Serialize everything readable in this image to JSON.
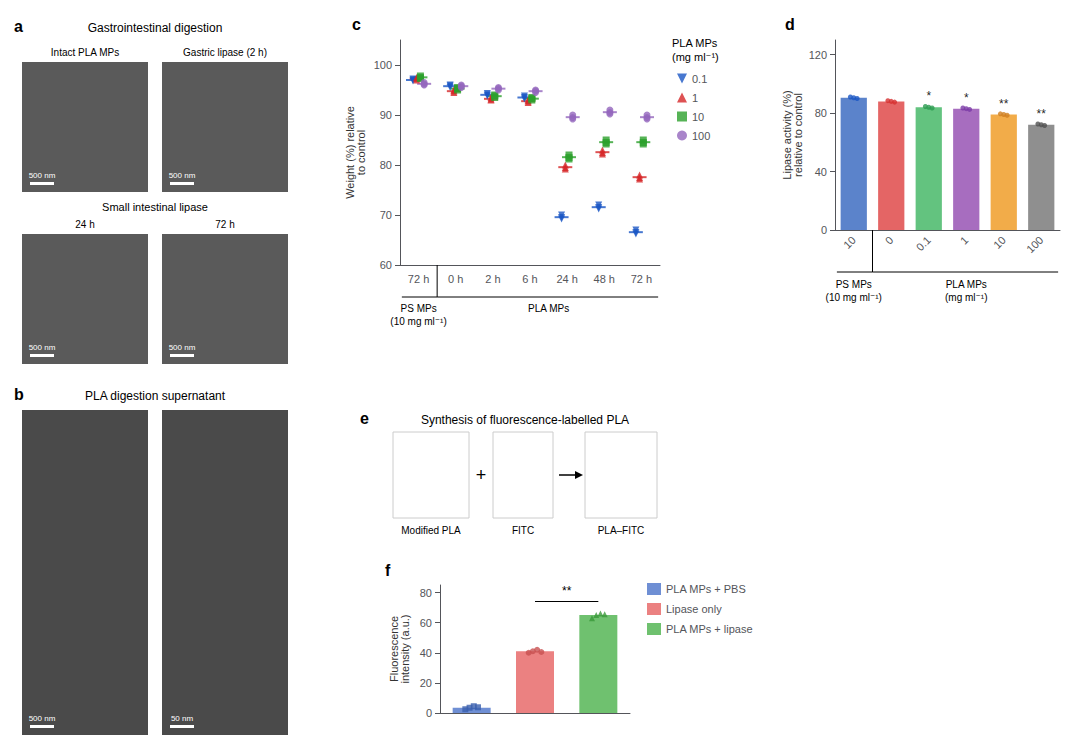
{
  "chart_data": [
    {
      "type": "diagram",
      "title": "Gastrointestinal digestion",
      "annotations": [
        "a",
        "Intact PLA MPs",
        "Gastric lipase (2 h)",
        "Small intestinal lipase",
        "24 h",
        "72 h",
        "500 nm",
        "500 nm",
        "500 nm",
        "500 nm"
      ]
    },
    {
      "type": "diagram",
      "title": "PLA digestion supernatant",
      "annotations": [
        "b",
        "500 nm",
        "50 nm"
      ]
    },
    {
      "type": "scatter",
      "annotations": [
        "c"
      ],
      "ylabel": "Weight (%) relative\nto control",
      "categories": [
        "72 h",
        "0 h",
        "2 h",
        "6 h",
        "24 h",
        "48 h",
        "72 h"
      ],
      "ylim": [
        60,
        105
      ],
      "yticks": [
        60,
        70,
        80,
        90,
        100
      ],
      "grid": false,
      "legend": "right",
      "legend_title": "PLA MPs\n(mg ml⁻¹)",
      "groups": [
        {
          "label": "PS MPs\n(10 mg ml⁻¹)",
          "count": 1
        },
        {
          "label": "PLA MPs",
          "count": 6
        }
      ],
      "series": [
        {
          "name": "0.1",
          "color": "#1a56c4",
          "marker": "triangle-down",
          "values": [
            [
              97.0,
              97.2,
              96.8
            ],
            [
              95.8,
              96.0,
              95.5
            ],
            [
              94.0,
              94.3,
              93.8
            ],
            [
              93.5,
              93.8,
              93.2
            ],
            [
              69.5,
              70.0,
              69.2
            ],
            [
              71.5,
              72.0,
              71.2
            ],
            [
              66.5,
              67.0,
              66.2
            ]
          ],
          "means": [
            97.0,
            95.7667,
            94.0333,
            93.5,
            69.5667,
            71.5667,
            66.5667
          ]
        },
        {
          "name": "1",
          "color": "#d62728",
          "marker": "triangle-up",
          "values": [
            [
              97.3,
              97.5,
              97.0
            ],
            [
              94.5,
              95.0,
              94.8
            ],
            [
              93.2,
              93.5,
              93.0
            ],
            [
              92.8,
              93.0,
              92.5
            ],
            [
              79.5,
              80.0,
              79.2
            ],
            [
              82.5,
              83.0,
              82.2
            ],
            [
              77.5,
              78.0,
              77.2
            ]
          ],
          "means": [
            97.2667,
            94.7667,
            93.2333,
            92.7667,
            79.5667,
            82.5667,
            77.5667
          ]
        },
        {
          "name": "10",
          "color": "#2ca02c",
          "marker": "square",
          "values": [
            [
              97.5,
              97.8,
              97.3
            ],
            [
              95.3,
              95.5,
              95.0
            ],
            [
              93.8,
              94.0,
              93.5
            ],
            [
              93.3,
              93.5,
              93.0
            ],
            [
              81.5,
              82.0,
              81.2
            ],
            [
              84.5,
              85.0,
              84.2
            ],
            [
              84.5,
              85.0,
              84.2
            ]
          ],
          "means": [
            97.5333,
            95.2667,
            93.7667,
            93.2667,
            81.5667,
            84.5667,
            84.5667
          ]
        },
        {
          "name": "100",
          "color": "#9467bd",
          "marker": "circle",
          "values": [
            [
              96.2,
              96.5,
              96.0
            ],
            [
              95.8,
              96.0,
              95.5
            ],
            [
              95.3,
              95.5,
              95.0
            ],
            [
              94.8,
              95.0,
              94.5
            ],
            [
              89.5,
              90.0,
              89.2
            ],
            [
              90.5,
              91.0,
              90.2
            ],
            [
              89.5,
              90.0,
              89.2
            ]
          ],
          "means": [
            96.2333,
            95.7667,
            95.2667,
            94.7667,
            89.5667,
            90.5667,
            89.5667
          ]
        }
      ]
    },
    {
      "type": "bar",
      "annotations": [
        "d"
      ],
      "ylabel": "Lipase activity (%)\nrelative to control",
      "categories": [
        "10",
        "0",
        "0.1",
        "1",
        "10",
        "100"
      ],
      "values": [
        90.5,
        88.0,
        84.0,
        83.0,
        79.0,
        72.0
      ],
      "colors": [
        "#4472c4",
        "#e05050",
        "#4dbb6d",
        "#9b59b6",
        "#f0a030",
        "#7f7f7f"
      ],
      "points": [
        [
          91.0,
          90.5,
          90.0
        ],
        [
          88.5,
          88.0,
          87.5
        ],
        [
          84.5,
          84.0,
          83.5
        ],
        [
          83.5,
          83.0,
          82.5
        ],
        [
          79.5,
          79.0,
          78.5
        ],
        [
          72.5,
          72.0,
          71.5
        ]
      ],
      "point_colors": [
        "#1a56c4",
        "#d63030",
        "#2c9b50",
        "#7b39a6",
        "#d08020",
        "#505050"
      ],
      "significance": [
        null,
        null,
        "*",
        "*",
        "**",
        "**"
      ],
      "ylim": [
        0,
        130
      ],
      "yticks": [
        0,
        40,
        80,
        120
      ],
      "grid": false,
      "groups": [
        {
          "label": "PS MPs\n(10 mg ml⁻¹)",
          "count": 1
        },
        {
          "label": "PLA MPs\n(mg ml⁻¹)",
          "count": 5
        }
      ]
    },
    {
      "type": "diagram",
      "title": "Synthesis of fluorescence-labelled PLA",
      "annotations": [
        "e",
        "Modified PLA",
        "+",
        "FITC",
        "PLA–FITC"
      ]
    },
    {
      "type": "bar",
      "annotations": [
        "f"
      ],
      "ylabel": "Fluorescence\nintensity (a.u.)",
      "ylim": [
        0,
        85
      ],
      "yticks": [
        0,
        20,
        40,
        60,
        80
      ],
      "grid": false,
      "legend": "right",
      "tick_labels": "y",
      "series": [
        {
          "name": "PLA MPs + PBS",
          "color": "#5b7fce",
          "values": [
            3.5
          ],
          "points": [
            2.5,
            3.5,
            4.5,
            3.8
          ],
          "point_color": "#3a5fae",
          "marker": "square"
        },
        {
          "name": "Lipase only",
          "color": "#e87070",
          "values": [
            41.0
          ],
          "points": [
            40.0,
            41.0,
            42.0,
            40.5
          ],
          "point_color": "#c85050",
          "marker": "circle"
        },
        {
          "name": "PLA MPs + lipase",
          "color": "#5bb85b",
          "values": [
            65.0
          ],
          "points": [
            63.0,
            65.0,
            66.0,
            65.5
          ],
          "point_color": "#3a983a",
          "marker": "triangle-up"
        }
      ],
      "brackets": [
        {
          "from": "Lipase only",
          "to": "PLA MPs + lipase",
          "y": 74,
          "label": "**"
        }
      ]
    }
  ]
}
